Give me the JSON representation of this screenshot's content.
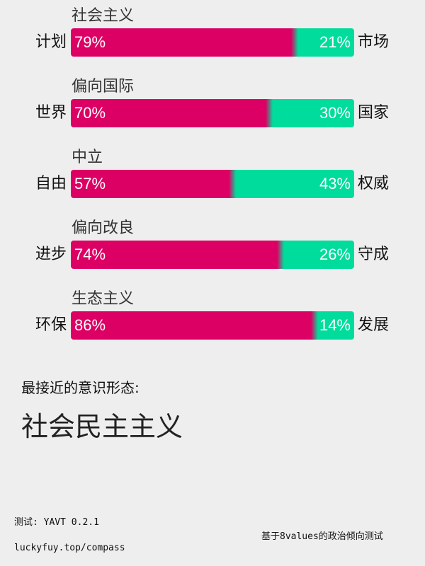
{
  "colors": {
    "left": "#dc0064",
    "right": "#00dc9b"
  },
  "chart_data": {
    "type": "bar",
    "axes": [
      {
        "title": "社会主义",
        "left_label": "计划",
        "right_label": "市场",
        "left_value": 79,
        "right_value": 21,
        "left_text": "79%",
        "right_text": "21%"
      },
      {
        "title": "偏向国际",
        "left_label": "世界",
        "right_label": "国家",
        "left_value": 70,
        "right_value": 30,
        "left_text": "70%",
        "right_text": "30%"
      },
      {
        "title": "中立",
        "left_label": "自由",
        "right_label": "权威",
        "left_value": 57,
        "right_value": 43,
        "left_text": "57%",
        "right_text": "43%"
      },
      {
        "title": "偏向改良",
        "left_label": "进步",
        "right_label": "守成",
        "left_value": 74,
        "right_value": 26,
        "left_text": "74%",
        "right_text": "26%"
      },
      {
        "title": "生态主义",
        "left_label": "环保",
        "right_label": "发展",
        "left_value": 86,
        "right_value": 14,
        "left_text": "86%",
        "right_text": "14%"
      }
    ]
  },
  "result": {
    "label": "最接近的意识形态:",
    "ideology": "社会民主主义"
  },
  "footer": {
    "version": "测试: YAVT 0.2.1",
    "url": "luckyfuy.top/compass",
    "credit": "基于8values的政治倾向测试"
  }
}
